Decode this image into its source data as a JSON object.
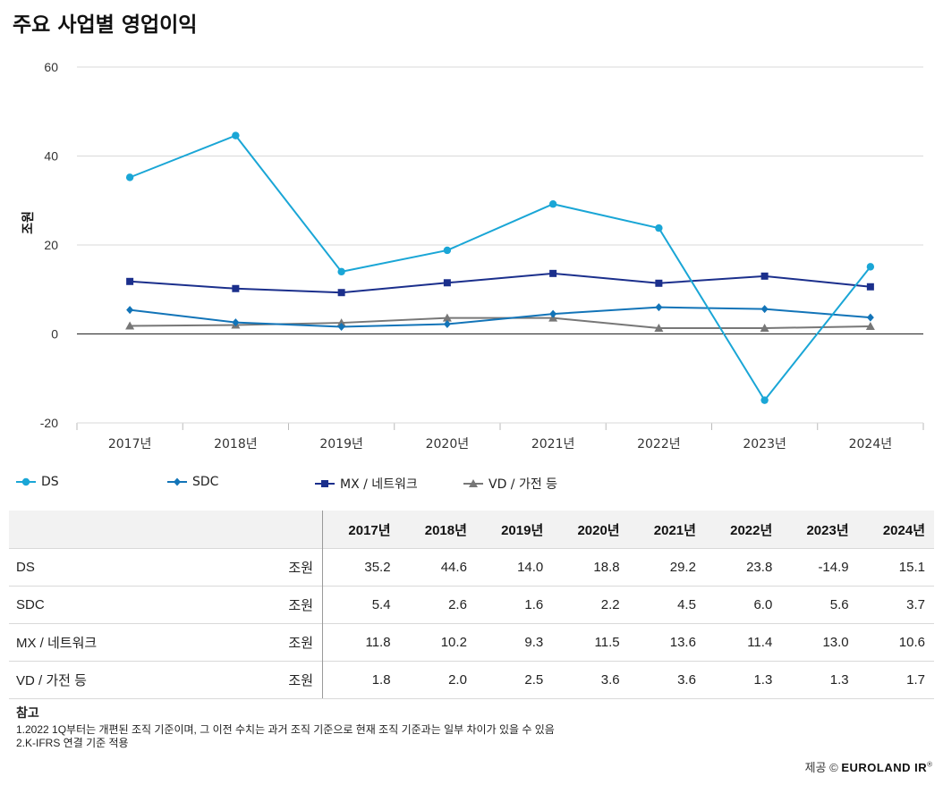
{
  "title": "주요 사업별 영업이익",
  "chart_data": {
    "type": "line",
    "ylabel": "조원",
    "ylim": [
      -20,
      60
    ],
    "yticks": [
      -20,
      0,
      20,
      40,
      60
    ],
    "categories": [
      "2017년",
      "2018년",
      "2019년",
      "2020년",
      "2021년",
      "2022년",
      "2023년",
      "2024년"
    ],
    "series": [
      {
        "name": "DS",
        "color": "#1aa6d6",
        "marker": "circle",
        "values": [
          35.2,
          44.6,
          14.0,
          18.8,
          29.2,
          23.8,
          -14.9,
          15.1
        ]
      },
      {
        "name": "SDC",
        "color": "#1274b8",
        "marker": "diamond",
        "values": [
          5.4,
          2.6,
          1.6,
          2.2,
          4.5,
          6.0,
          5.6,
          3.7
        ]
      },
      {
        "name": "MX / 네트워크",
        "color": "#1b2f8c",
        "marker": "square",
        "values": [
          11.8,
          10.2,
          9.3,
          11.5,
          13.6,
          11.4,
          13.0,
          10.6
        ]
      },
      {
        "name": "VD / 가전 등",
        "color": "#777777",
        "marker": "triangle",
        "values": [
          1.8,
          2.0,
          2.5,
          3.6,
          3.6,
          1.3,
          1.3,
          1.7
        ]
      }
    ],
    "grid": true,
    "legend_position": "bottom"
  },
  "table": {
    "headers": [
      "2017년",
      "2018년",
      "2019년",
      "2020년",
      "2021년",
      "2022년",
      "2023년",
      "2024년"
    ],
    "rows": [
      {
        "name": "DS",
        "unit": "조원",
        "values": [
          "35.2",
          "44.6",
          "14.0",
          "18.8",
          "29.2",
          "23.8",
          "-14.9",
          "15.1"
        ]
      },
      {
        "name": "SDC",
        "unit": "조원",
        "values": [
          "5.4",
          "2.6",
          "1.6",
          "2.2",
          "4.5",
          "6.0",
          "5.6",
          "3.7"
        ]
      },
      {
        "name": "MX / 네트워크",
        "unit": "조원",
        "values": [
          "11.8",
          "10.2",
          "9.3",
          "11.5",
          "13.6",
          "11.4",
          "13.0",
          "10.6"
        ]
      },
      {
        "name": "VD / 가전 등",
        "unit": "조원",
        "values": [
          "1.8",
          "2.0",
          "2.5",
          "3.6",
          "3.6",
          "1.3",
          "1.3",
          "1.7"
        ]
      }
    ]
  },
  "notes": {
    "title": "참고",
    "lines": [
      "1.2022 1Q부터는 개편된 조직 기준이며, 그 이전 수치는 과거 조직 기준으로 현재 조직 기준과는 일부 차이가 있을 수 있음",
      "2.K-IFRS 연결 기준 적용"
    ]
  },
  "credit": {
    "prefix": "제공 ©",
    "brand": "EUROLAND IR",
    "reg": "®"
  }
}
